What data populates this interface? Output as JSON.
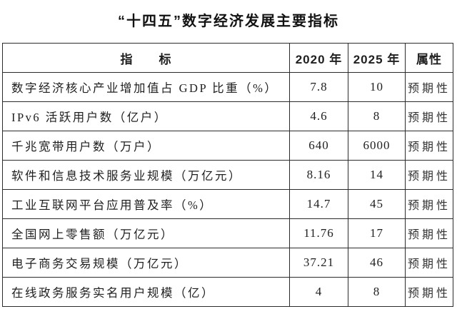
{
  "title": "“十四五”数字经济发展主要指标",
  "colors": {
    "text": "#1f1f1f",
    "border": "#2c2c2c",
    "background": "#ffffff"
  },
  "table": {
    "headers": {
      "indicator": "指　　标",
      "y2020": "2020 年",
      "y2025": "2025 年",
      "attribute": "属性"
    },
    "rows": [
      {
        "indicator": "数字经济核心产业增加值占 GDP 比重（%）",
        "y2020": "7.8",
        "y2025": "10",
        "attribute": "预期性"
      },
      {
        "indicator": "IPv6 活跃用户数（亿户）",
        "y2020": "4.6",
        "y2025": "8",
        "attribute": "预期性"
      },
      {
        "indicator": "千兆宽带用户数（万户）",
        "y2020": "640",
        "y2025": "6000",
        "attribute": "预期性"
      },
      {
        "indicator": "软件和信息技术服务业规模（万亿元）",
        "y2020": "8.16",
        "y2025": "14",
        "attribute": "预期性"
      },
      {
        "indicator": "工业互联网平台应用普及率（%）",
        "y2020": "14.7",
        "y2025": "45",
        "attribute": "预期性"
      },
      {
        "indicator": "全国网上零售额（万亿元）",
        "y2020": "11.76",
        "y2025": "17",
        "attribute": "预期性"
      },
      {
        "indicator": "电子商务交易规模（万亿元）",
        "y2020": "37.21",
        "y2025": "46",
        "attribute": "预期性"
      },
      {
        "indicator": "在线政务服务实名用户规模（亿）",
        "y2020": "4",
        "y2025": "8",
        "attribute": "预期性"
      }
    ]
  }
}
